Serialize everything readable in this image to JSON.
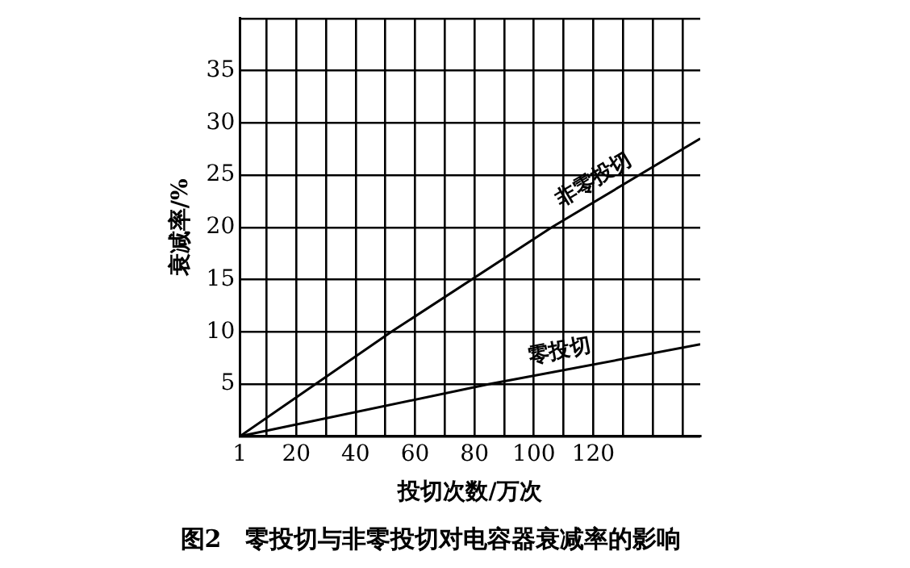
{
  "chart_data": {
    "type": "line",
    "title": "图2　零投切与非零投切对电容器衰减率的影响",
    "xlabel": "投切次数/万次",
    "ylabel": "衰减率/%",
    "xlim": [
      1,
      156
    ],
    "xticks": [
      1,
      {
        "value": 10,
        "label": null
      },
      20,
      {
        "value": 30,
        "label": null
      },
      40,
      {
        "value": 50,
        "label": null
      },
      60,
      {
        "value": 70,
        "label": null
      },
      80,
      {
        "value": 90,
        "label": null
      },
      100,
      {
        "value": 110,
        "label": null
      },
      120,
      {
        "value": 130,
        "label": null
      },
      {
        "value": 140,
        "label": null
      },
      {
        "value": 150,
        "label": null
      }
    ],
    "ylim": [
      0,
      40
    ],
    "yticks": [
      {
        "value": 0,
        "label": null
      },
      5,
      10,
      15,
      20,
      25,
      30,
      35,
      {
        "value": 40,
        "label": null
      }
    ],
    "series": [
      {
        "name": "非零投切",
        "color": "#000000",
        "x": [
          1,
          52,
          106,
          156
        ],
        "values": [
          0,
          10,
          20,
          28.5
        ]
      },
      {
        "name": "零投切",
        "color": "#000000",
        "x": [
          1,
          85,
          156
        ],
        "values": [
          0,
          5,
          8.8
        ]
      }
    ],
    "grid": true,
    "legend": false,
    "marker": "none",
    "line_style": "solid"
  }
}
